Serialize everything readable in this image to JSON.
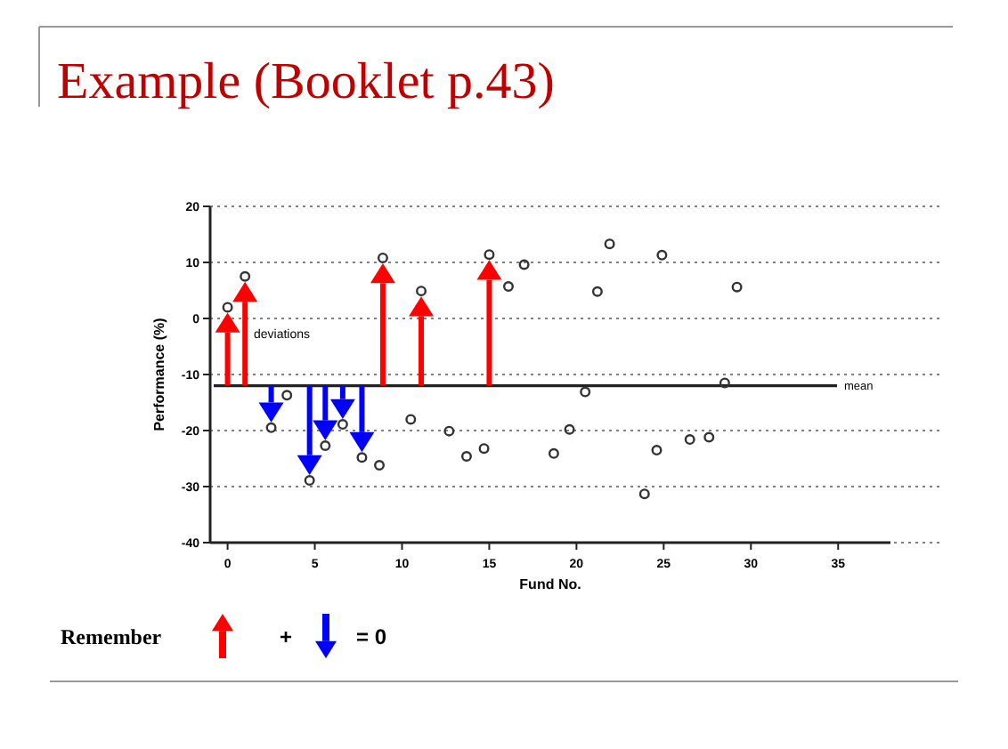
{
  "chart_data": {
    "type": "scatter",
    "title": "Example (Booklet p.43)",
    "xlabel": "Fund No.",
    "ylabel": "Performance (%)",
    "series": [
      {
        "color": "#333333",
        "x": [
          0,
          1,
          2.5,
          3.4,
          4.7,
          5.6,
          6.6,
          7.7,
          8.7,
          8.9,
          10.5,
          11.1,
          12.7,
          13.7,
          14.7,
          15,
          16.1,
          17,
          18.7,
          19.6,
          20.5,
          21.2,
          21.9,
          23.9,
          24.6,
          24.9,
          26.5,
          27.6,
          28.5,
          29.2
        ],
        "values": [
          2,
          7.5,
          -19.5,
          -13.7,
          -28.9,
          -22.7,
          -18.9,
          -24.8,
          -26.2,
          10.8,
          -18,
          4.9,
          -20.1,
          -24.6,
          -23.2,
          11.4,
          5.7,
          9.6,
          -24.1,
          -19.8,
          -13.1,
          4.8,
          13.3,
          -31.3,
          -23.5,
          11.3,
          -21.6,
          -21.2,
          -11.5,
          5.6
        ]
      }
    ],
    "xlim": [
      -1,
      38
    ],
    "ylim": [
      -40,
      20
    ],
    "xticks": [
      0,
      5,
      10,
      15,
      20,
      25,
      30,
      35
    ],
    "yticks": [
      -40,
      -30,
      -20,
      -10,
      0,
      10,
      20
    ],
    "grid": "y",
    "marker": "circle",
    "ref_lines": [
      {
        "axis": "y",
        "value": -12,
        "label": "mean",
        "color": "#222222"
      }
    ],
    "annotations": [
      "deviations",
      "Remember",
      "+",
      "= 0"
    ]
  }
}
